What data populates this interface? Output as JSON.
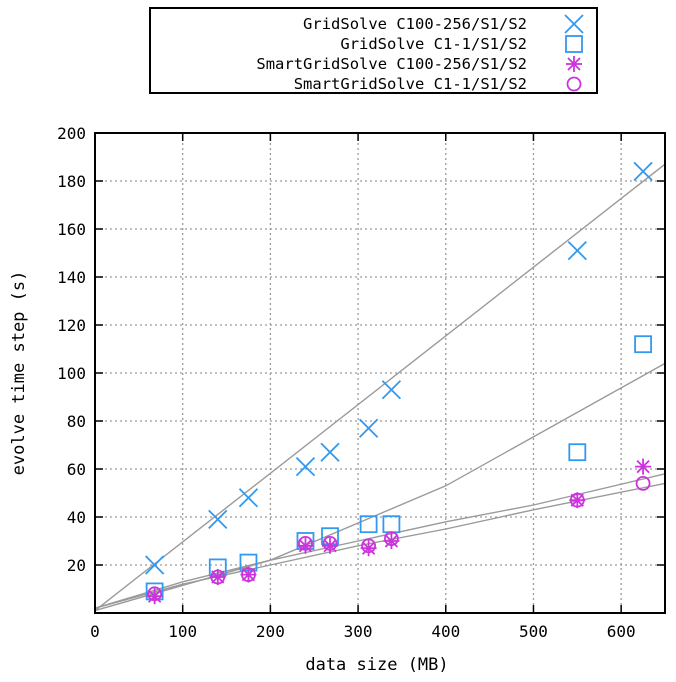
{
  "chart_data": {
    "type": "scatter",
    "title": "",
    "xlabel": "data size (MB)",
    "ylabel": "evolve time step (s)",
    "xlim": [
      0,
      650
    ],
    "ylim": [
      0,
      200
    ],
    "x_ticks": [
      0,
      100,
      200,
      300,
      400,
      500,
      600
    ],
    "y_ticks": [
      20,
      40,
      60,
      80,
      100,
      120,
      140,
      160,
      180,
      200
    ],
    "grid": true,
    "legend_position": "top (outside plot)",
    "series": [
      {
        "name": "GridSolve C100-256/S1/S2",
        "marker": "x",
        "color": "#3399ee",
        "points": [
          [
            68,
            20
          ],
          [
            140,
            39
          ],
          [
            175,
            48
          ],
          [
            240,
            61
          ],
          [
            268,
            67
          ],
          [
            312,
            77
          ],
          [
            338,
            93
          ],
          [
            550,
            151
          ],
          [
            625,
            184
          ]
        ]
      },
      {
        "name": "GridSolve C1-1/S1/S2",
        "marker": "square",
        "color": "#3399ee",
        "points": [
          [
            68,
            9
          ],
          [
            140,
            19
          ],
          [
            175,
            21
          ],
          [
            240,
            30
          ],
          [
            268,
            32
          ],
          [
            312,
            37
          ],
          [
            338,
            37
          ],
          [
            550,
            67
          ],
          [
            625,
            112
          ]
        ]
      },
      {
        "name": "SmartGridSolve C100-256/S1/S2",
        "marker": "asterisk",
        "color": "#cc33dd",
        "points": [
          [
            68,
            7
          ],
          [
            140,
            15
          ],
          [
            175,
            16
          ],
          [
            240,
            28
          ],
          [
            268,
            28
          ],
          [
            312,
            27
          ],
          [
            338,
            30
          ],
          [
            550,
            47
          ],
          [
            625,
            61
          ]
        ]
      },
      {
        "name": "SmartGridSolve C1-1/S1/S2",
        "marker": "circle",
        "color": "#cc33dd",
        "points": [
          [
            68,
            8
          ],
          [
            140,
            15
          ],
          [
            175,
            16
          ],
          [
            240,
            29
          ],
          [
            268,
            29
          ],
          [
            312,
            28
          ],
          [
            338,
            31
          ],
          [
            550,
            47
          ],
          [
            625,
            54
          ]
        ]
      }
    ],
    "fit_lines": [
      {
        "color": "#9a9a9a",
        "points": [
          [
            0,
            1
          ],
          [
            650,
            187
          ]
        ]
      },
      {
        "color": "#9a9a9a",
        "points": [
          [
            0,
            1
          ],
          [
            200,
            22
          ],
          [
            400,
            53
          ],
          [
            650,
            104
          ]
        ]
      },
      {
        "color": "#9a9a9a",
        "points": [
          [
            0,
            2
          ],
          [
            100,
            13
          ],
          [
            200,
            22
          ],
          [
            300,
            30
          ],
          [
            400,
            38
          ],
          [
            500,
            45
          ],
          [
            650,
            58
          ]
        ]
      },
      {
        "color": "#9a9a9a",
        "points": [
          [
            0,
            2
          ],
          [
            100,
            12
          ],
          [
            200,
            20
          ],
          [
            300,
            28
          ],
          [
            400,
            35
          ],
          [
            500,
            43
          ],
          [
            650,
            54
          ]
        ]
      }
    ]
  }
}
